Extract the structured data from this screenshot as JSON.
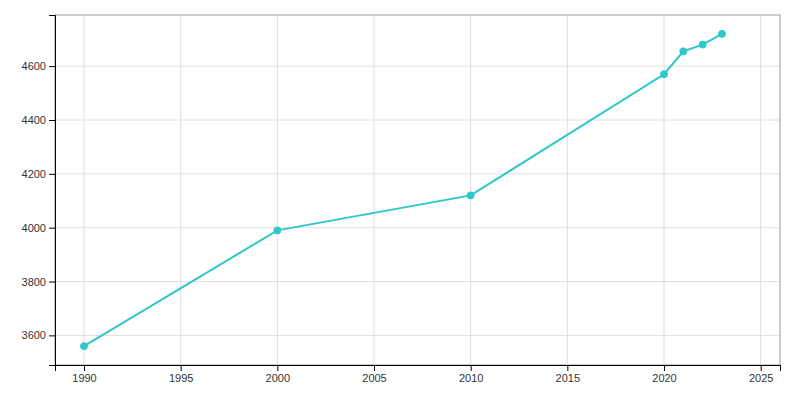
{
  "chart_data": {
    "type": "line",
    "x": [
      1990,
      2000,
      2010,
      2020,
      2021,
      2022,
      2023
    ],
    "values": [
      3560,
      3990,
      4120,
      4570,
      4655,
      4680,
      4720
    ],
    "color": "#2ec8c8",
    "marker": "circle",
    "xlim": [
      1988.5,
      2026
    ],
    "ylim": [
      3490,
      4790
    ],
    "xticks": [
      1990,
      1995,
      2000,
      2005,
      2010,
      2015,
      2020,
      2025
    ],
    "yticks": [
      3600,
      3800,
      4000,
      4200,
      4400,
      4600
    ],
    "grid": true
  }
}
